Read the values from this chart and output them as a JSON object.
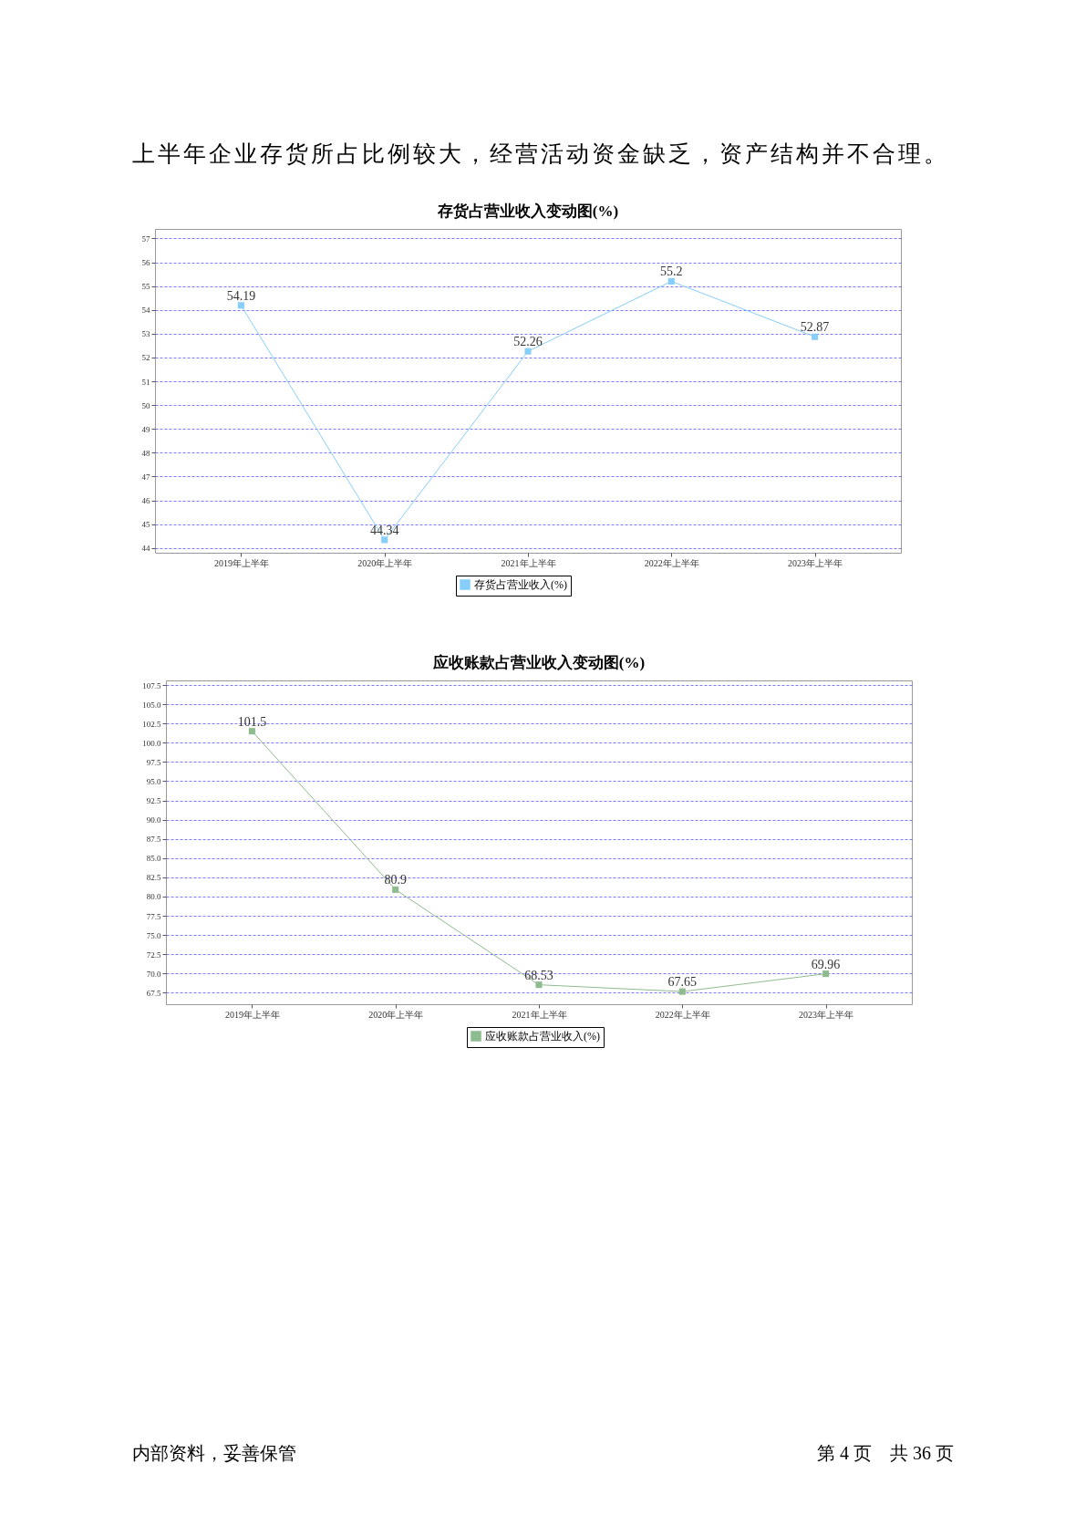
{
  "chart_data": [
    {
      "type": "line",
      "title": "存货占营业收入变动图(%)",
      "annotations": [
        "上半年企业存货所占比例较大，经营活动资金缺乏，资产结构并不合理。"
      ],
      "categories": [
        "2019年上半年",
        "2020年上半年",
        "2021年上半年",
        "2022年上半年",
        "2023年上半年"
      ],
      "series": [
        {
          "name": "存货占营业收入(%)",
          "color": "#87cefa",
          "values": [
            54.19,
            44.34,
            52.26,
            55.2,
            52.87
          ]
        }
      ],
      "ylim": [
        43.8,
        57.4
      ],
      "yticks": [
        44,
        45,
        46,
        47,
        48,
        49,
        50,
        51,
        52,
        53,
        54,
        55,
        56,
        57
      ],
      "grid": "y",
      "legend": "bottom",
      "marker": "square",
      "line_style": "solid",
      "data_labels": true
    },
    {
      "type": "line",
      "title": "应收账款占营业收入变动图(%)",
      "annotations": [
        "内部资料，妥善保管",
        "第 4 页　共 36 页"
      ],
      "categories": [
        "2019年上半年",
        "2020年上半年",
        "2021年上半年",
        "2022年上半年",
        "2023年上半年"
      ],
      "series": [
        {
          "name": "应收账款占营业收入(%)",
          "color": "#8fbc8f",
          "values": [
            101.5,
            80.9,
            68.53,
            67.65,
            69.96
          ]
        }
      ],
      "ylim": [
        66,
        108.1
      ],
      "yticks": [
        67.5,
        {
          "value": 70,
          "label": "70.0"
        },
        72.5,
        {
          "value": 75,
          "label": "75.0"
        },
        77.5,
        {
          "value": 80,
          "label": "80.0"
        },
        82.5,
        {
          "value": 85,
          "label": "85.0"
        },
        87.5,
        {
          "value": 90,
          "label": "90.0"
        },
        92.5,
        {
          "value": 95,
          "label": "95.0"
        },
        97.5,
        {
          "value": 100,
          "label": "100.0"
        },
        102.5,
        {
          "value": 105,
          "label": "105.0"
        },
        107.5
      ],
      "grid": "y",
      "legend": "bottom",
      "marker": "square",
      "line_style": "solid",
      "data_labels": true
    }
  ]
}
